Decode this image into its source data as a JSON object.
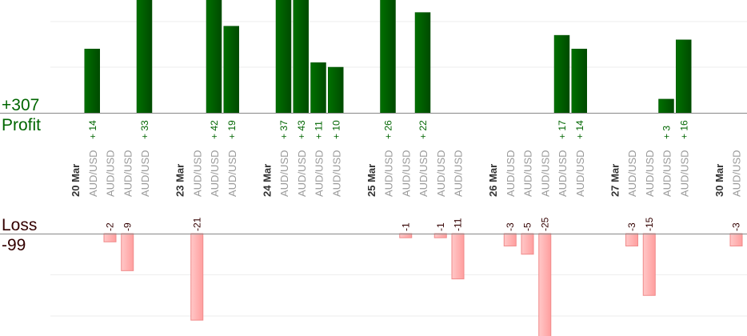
{
  "summary": {
    "profit_total": "+307",
    "profit_label": "Profit",
    "loss_label": "Loss",
    "loss_total": "-99"
  },
  "colors": {
    "profit": "#006600",
    "profit_dark": "#004a00",
    "loss_fill": "#ffb3b3",
    "loss_border": "#f08a8a",
    "loss_text": "#330000",
    "pair_text": "#999999"
  },
  "chart_data": {
    "type": "bar",
    "grid": true,
    "profit_ylim": [
      0,
      25
    ],
    "loss_ylim": [
      -20,
      0
    ],
    "days": [
      {
        "date": "20 Mar",
        "trades": [
          {
            "pair": "AUD/USD",
            "value": 14
          },
          {
            "pair": "AUD/USD",
            "value": -2
          },
          {
            "pair": "AUD/USD",
            "value": -9
          },
          {
            "pair": "AUD/USD",
            "value": 33
          }
        ]
      },
      {
        "date": "23 Mar",
        "trades": [
          {
            "pair": "AUD/USD",
            "value": -21
          },
          {
            "pair": "AUD/USD",
            "value": 42
          },
          {
            "pair": "AUD/USD",
            "value": 19
          }
        ]
      },
      {
        "date": "24 Mar",
        "trades": [
          {
            "pair": "AUD/USD",
            "value": 37
          },
          {
            "pair": "AUD/USD",
            "value": 43
          },
          {
            "pair": "AUD/USD",
            "value": 11
          },
          {
            "pair": "AUD/USD",
            "value": 10
          }
        ]
      },
      {
        "date": "25 Mar",
        "trades": [
          {
            "pair": "AUD/USD",
            "value": 26
          },
          {
            "pair": "AUD/USD",
            "value": -1
          },
          {
            "pair": "AUD/USD",
            "value": 22
          },
          {
            "pair": "AUD/USD",
            "value": -1
          },
          {
            "pair": "AUD/USD",
            "value": -11
          }
        ]
      },
      {
        "date": "26 Mar",
        "trades": [
          {
            "pair": "AUD/USD",
            "value": -3
          },
          {
            "pair": "AUD/USD",
            "value": -5
          },
          {
            "pair": "AUD/USD",
            "value": -25
          },
          {
            "pair": "AUD/USD",
            "value": 17
          },
          {
            "pair": "AUD/USD",
            "value": 14
          }
        ]
      },
      {
        "date": "27 Mar",
        "trades": [
          {
            "pair": "AUD/USD",
            "value": -3
          },
          {
            "pair": "AUD/USD",
            "value": -15
          },
          {
            "pair": "AUD/USD",
            "value": 3
          },
          {
            "pair": "AUD/USD",
            "value": 16
          }
        ]
      },
      {
        "date": "30 Mar",
        "trades": [
          {
            "pair": "AUD/USD",
            "value": -3
          }
        ]
      }
    ]
  }
}
